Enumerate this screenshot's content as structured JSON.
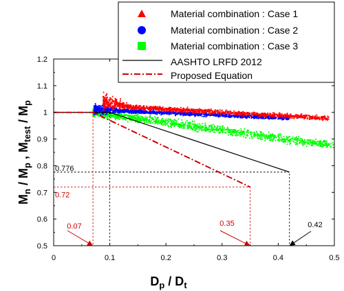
{
  "chart_data": {
    "type": "scatter",
    "xlabel_main": "D",
    "xlabel_sub1": "p",
    "xlabel_sep": " / D",
    "xlabel_sub2": "t",
    "ylabel_parts": [
      "M",
      "n",
      " / M",
      "p",
      " ,  M",
      "test",
      " / M",
      "p"
    ],
    "xlim": [
      0,
      0.5
    ],
    "ylim": [
      0.5,
      1.2
    ],
    "xticks": [
      "0",
      "0.1",
      "0.2",
      "0.3",
      "0.4",
      "0.5"
    ],
    "yticks": [
      "0.5",
      "0.6",
      "0.7",
      "0.8",
      "0.9",
      "1",
      "1.1",
      "1.2"
    ],
    "legend_position": "top-right",
    "series": [
      {
        "name": "Material combination : Case 1",
        "color": "#ff0000",
        "marker": "triangle",
        "cloud": {
          "x_start": 0.088,
          "x_end": 0.49,
          "y_at_start": 1.025,
          "y_at_end": 0.978,
          "spread": 0.012
        }
      },
      {
        "name": "Material combination : Case 2",
        "color": "#0000ff",
        "marker": "circle",
        "cloud": {
          "x_start": 0.072,
          "x_end": 0.42,
          "y_at_start": 1.01,
          "y_at_end": 0.978,
          "spread": 0.01
        }
      },
      {
        "name": "Material combination : Case 3",
        "color": "#00ff00",
        "marker": "square",
        "cloud": {
          "x_start": 0.07,
          "x_end": 0.5,
          "y_at_start": 1.0,
          "y_at_end": 0.875,
          "spread": 0.022
        }
      }
    ],
    "lines": [
      {
        "name": "AASHTO LRFD 2012",
        "color": "#000000",
        "style": "solid",
        "points": [
          [
            0,
            1.0
          ],
          [
            0.1,
            1.0
          ],
          [
            0.42,
            0.776
          ]
        ]
      },
      {
        "name": "Proposed Equation",
        "color": "#cc0000",
        "style": "dashdot",
        "points": [
          [
            0,
            1.0
          ],
          [
            0.07,
            1.0
          ],
          [
            0.35,
            0.72
          ]
        ]
      }
    ],
    "guides": [
      {
        "color": "#000000",
        "points": [
          [
            0,
            0.776
          ],
          [
            0.42,
            0.776
          ],
          [
            0.42,
            0.5
          ]
        ]
      },
      {
        "color": "#cc0000",
        "points": [
          [
            0,
            0.72
          ],
          [
            0.35,
            0.72
          ],
          [
            0.35,
            0.5
          ]
        ]
      },
      {
        "color": "#cc0000",
        "points": [
          [
            0.07,
            1.0
          ],
          [
            0.07,
            0.5
          ]
        ]
      },
      {
        "color": "#000000",
        "points": [
          [
            0.1,
            1.0
          ],
          [
            0.1,
            0.5
          ]
        ]
      }
    ],
    "annotations": [
      {
        "text": "0.776",
        "color": "#000000",
        "kind": "hline-label",
        "value": 0.776
      },
      {
        "text": "0.72",
        "color": "#cc0000",
        "kind": "hline-label",
        "value": 0.72
      },
      {
        "text": "0.07",
        "color": "#cc0000",
        "kind": "arrow",
        "target": [
          0.07,
          0.5
        ]
      },
      {
        "text": "0.35",
        "color": "#cc0000",
        "kind": "arrow",
        "target": [
          0.35,
          0.5
        ]
      },
      {
        "text": "0.42",
        "color": "#000000",
        "kind": "arrow",
        "target": [
          0.42,
          0.5
        ]
      }
    ]
  }
}
